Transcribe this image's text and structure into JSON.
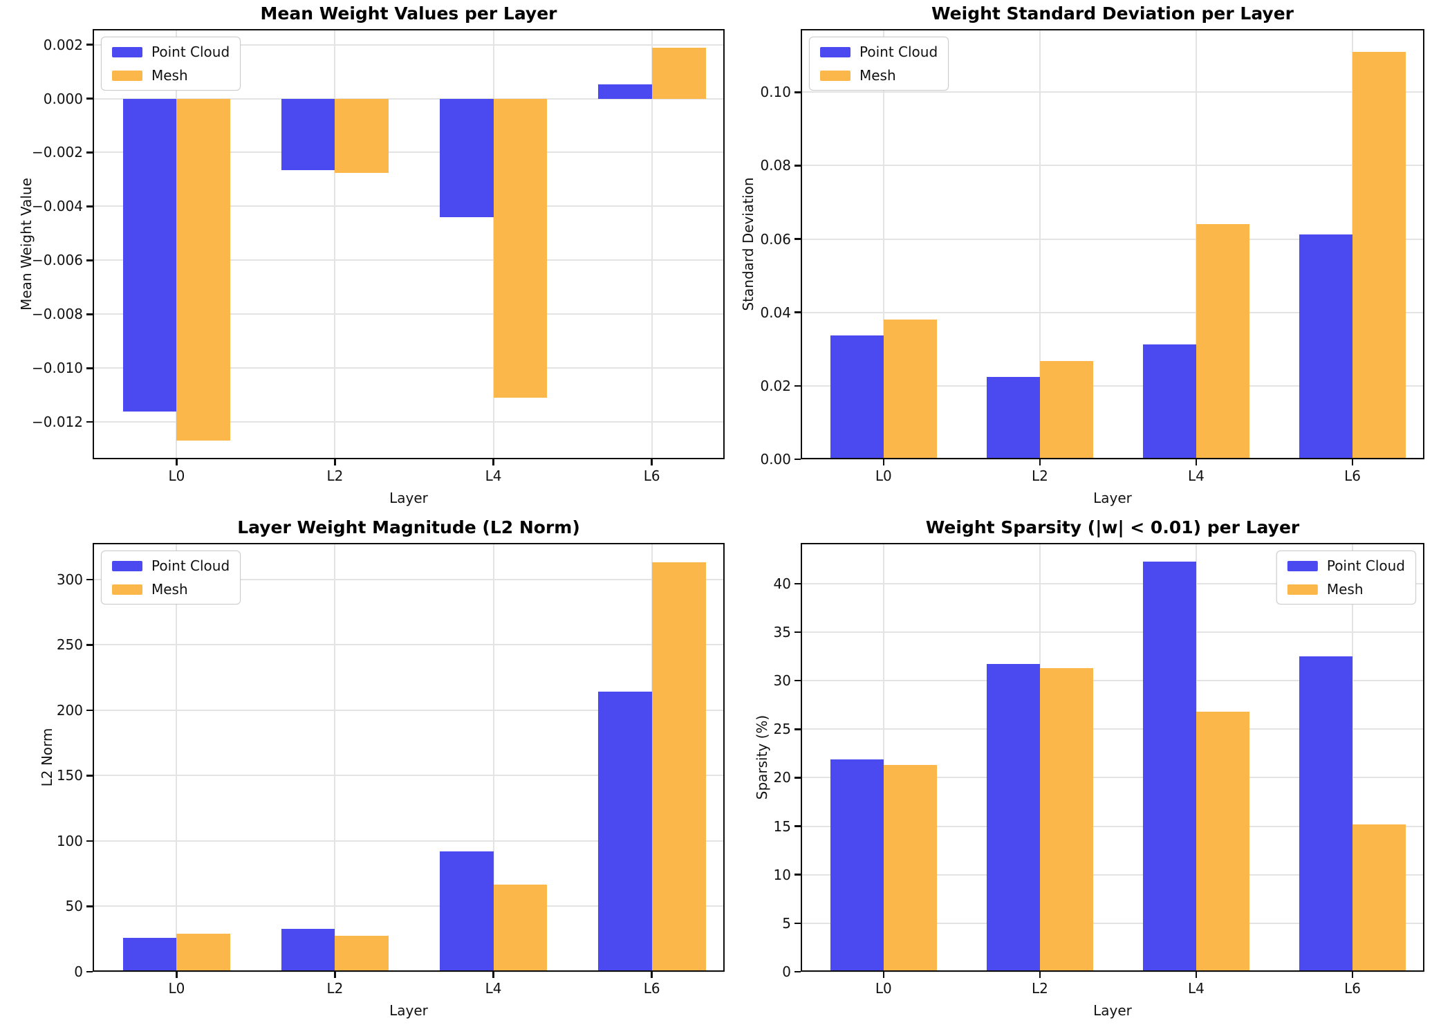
{
  "figure": {
    "background": "#ffffff",
    "point_cloud_color": "#4a4af0",
    "mesh_color": "#fcb74a",
    "grid_color": "#e3e3e3",
    "legend_entries": [
      "Point Cloud",
      "Mesh"
    ]
  },
  "chart_data": [
    {
      "type": "bar",
      "title": "Mean Weight Values per Layer",
      "xlabel": "Layer",
      "ylabel": "Mean Weight Value",
      "categories": [
        "L0",
        "L2",
        "L4",
        "L6"
      ],
      "series": [
        {
          "name": "Point Cloud",
          "color": "#4a4af0",
          "values": [
            -0.0116,
            -0.00265,
            -0.0044,
            0.00054
          ]
        },
        {
          "name": "Mesh",
          "color": "#fcb74a",
          "values": [
            -0.0127,
            -0.00275,
            -0.0111,
            0.0019
          ]
        }
      ],
      "ylim": [
        -0.01338,
        0.00258
      ],
      "xlim": [
        -0.53,
        3.46
      ],
      "bar_width": 0.34,
      "grid": true,
      "legend_loc": "upper-left",
      "yticks": {
        "values": [
          0.002,
          0.0,
          -0.002,
          -0.004,
          -0.006,
          -0.008,
          -0.01,
          -0.012
        ],
        "labels": [
          "0.002",
          "0.000",
          "−0.002",
          "−0.004",
          "−0.006",
          "−0.008",
          "−0.010",
          "−0.012"
        ]
      }
    },
    {
      "type": "bar",
      "title": "Weight Standard Deviation per Layer",
      "xlabel": "Layer",
      "ylabel": "Standard Deviation",
      "categories": [
        "L0",
        "L2",
        "L4",
        "L6"
      ],
      "series": [
        {
          "name": "Point Cloud",
          "color": "#4a4af0",
          "values": [
            0.0337,
            0.0224,
            0.0313,
            0.0612
          ]
        },
        {
          "name": "Mesh",
          "color": "#fcb74a",
          "values": [
            0.0381,
            0.0268,
            0.064,
            0.111
          ]
        }
      ],
      "ylim": [
        0,
        0.1172
      ],
      "xlim": [
        -0.53,
        3.46
      ],
      "bar_width": 0.34,
      "grid": true,
      "legend_loc": "upper-left",
      "yticks": {
        "values": [
          0.0,
          0.02,
          0.04,
          0.06,
          0.08,
          0.1
        ],
        "labels": [
          "0.00",
          "0.02",
          "0.04",
          "0.06",
          "0.08",
          "0.10"
        ]
      }
    },
    {
      "type": "bar",
      "title": "Layer Weight Magnitude (L2 Norm)",
      "xlabel": "Layer",
      "ylabel": "L2 Norm",
      "categories": [
        "L0",
        "L2",
        "L4",
        "L6"
      ],
      "series": [
        {
          "name": "Point Cloud",
          "color": "#4a4af0",
          "values": [
            26,
            33,
            92,
            214
          ]
        },
        {
          "name": "Mesh",
          "color": "#fcb74a",
          "values": [
            29,
            27.5,
            66.5,
            313
          ]
        }
      ],
      "ylim": [
        0,
        328
      ],
      "xlim": [
        -0.53,
        3.46
      ],
      "bar_width": 0.34,
      "grid": true,
      "legend_loc": "upper-left",
      "yticks": {
        "values": [
          0,
          50,
          100,
          150,
          200,
          250,
          300
        ],
        "labels": [
          "0",
          "50",
          "100",
          "150",
          "200",
          "250",
          "300"
        ]
      }
    },
    {
      "type": "bar",
      "title": "Weight Sparsity (|w| < 0.01) per Layer",
      "xlabel": "Layer",
      "ylabel": "Sparsity (%)",
      "categories": [
        "L0",
        "L2",
        "L4",
        "L6"
      ],
      "series": [
        {
          "name": "Point Cloud",
          "color": "#4a4af0",
          "values": [
            21.9,
            31.7,
            42.3,
            32.5
          ]
        },
        {
          "name": "Mesh",
          "color": "#fcb74a",
          "values": [
            21.3,
            31.3,
            26.8,
            15.2
          ]
        }
      ],
      "ylim": [
        0,
        44.2
      ],
      "xlim": [
        -0.53,
        3.46
      ],
      "bar_width": 0.34,
      "grid": true,
      "legend_loc": "upper-right",
      "yticks": {
        "values": [
          0,
          5,
          10,
          15,
          20,
          25,
          30,
          35,
          40
        ],
        "labels": [
          "0",
          "5",
          "10",
          "15",
          "20",
          "25",
          "30",
          "35",
          "40"
        ]
      }
    }
  ]
}
